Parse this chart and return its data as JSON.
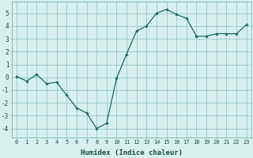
{
  "x": [
    0,
    1,
    2,
    3,
    4,
    5,
    6,
    7,
    8,
    9,
    10,
    11,
    12,
    13,
    14,
    15,
    16,
    17,
    18,
    19,
    20,
    21,
    22,
    23
  ],
  "y": [
    0.05,
    -0.3,
    0.2,
    -0.5,
    -0.4,
    -1.4,
    -2.4,
    -2.8,
    -4.0,
    -3.6,
    -0.1,
    1.8,
    3.6,
    4.0,
    5.0,
    5.3,
    4.9,
    4.6,
    3.2,
    3.2,
    3.4,
    3.4,
    3.4,
    4.1
  ],
  "xlabel": "Humidex (Indice chaleur)",
  "xlim": [
    -0.5,
    23.5
  ],
  "ylim": [
    -4.7,
    5.9
  ],
  "yticks": [
    -4,
    -3,
    -2,
    -1,
    0,
    1,
    2,
    3,
    4,
    5
  ],
  "xticks": [
    0,
    1,
    2,
    3,
    4,
    5,
    6,
    7,
    8,
    9,
    10,
    11,
    12,
    13,
    14,
    15,
    16,
    17,
    18,
    19,
    20,
    21,
    22,
    23
  ],
  "xtick_labels": [
    "0",
    "1",
    "2",
    "3",
    "4",
    "5",
    "6",
    "7",
    "8",
    "9",
    "10",
    "11",
    "12",
    "13",
    "14",
    "15",
    "16",
    "17",
    "18",
    "19",
    "20",
    "21",
    "22",
    "23"
  ],
  "line_color": "#1a6b5a",
  "marker": "D",
  "marker_size": 1.8,
  "background_color": "#d6f0ee",
  "grid_color": "#7ab8b0",
  "font_color": "#1a4a3a",
  "tick_fontsize": 5.0,
  "xlabel_fontsize": 6.5,
  "linewidth": 0.9
}
